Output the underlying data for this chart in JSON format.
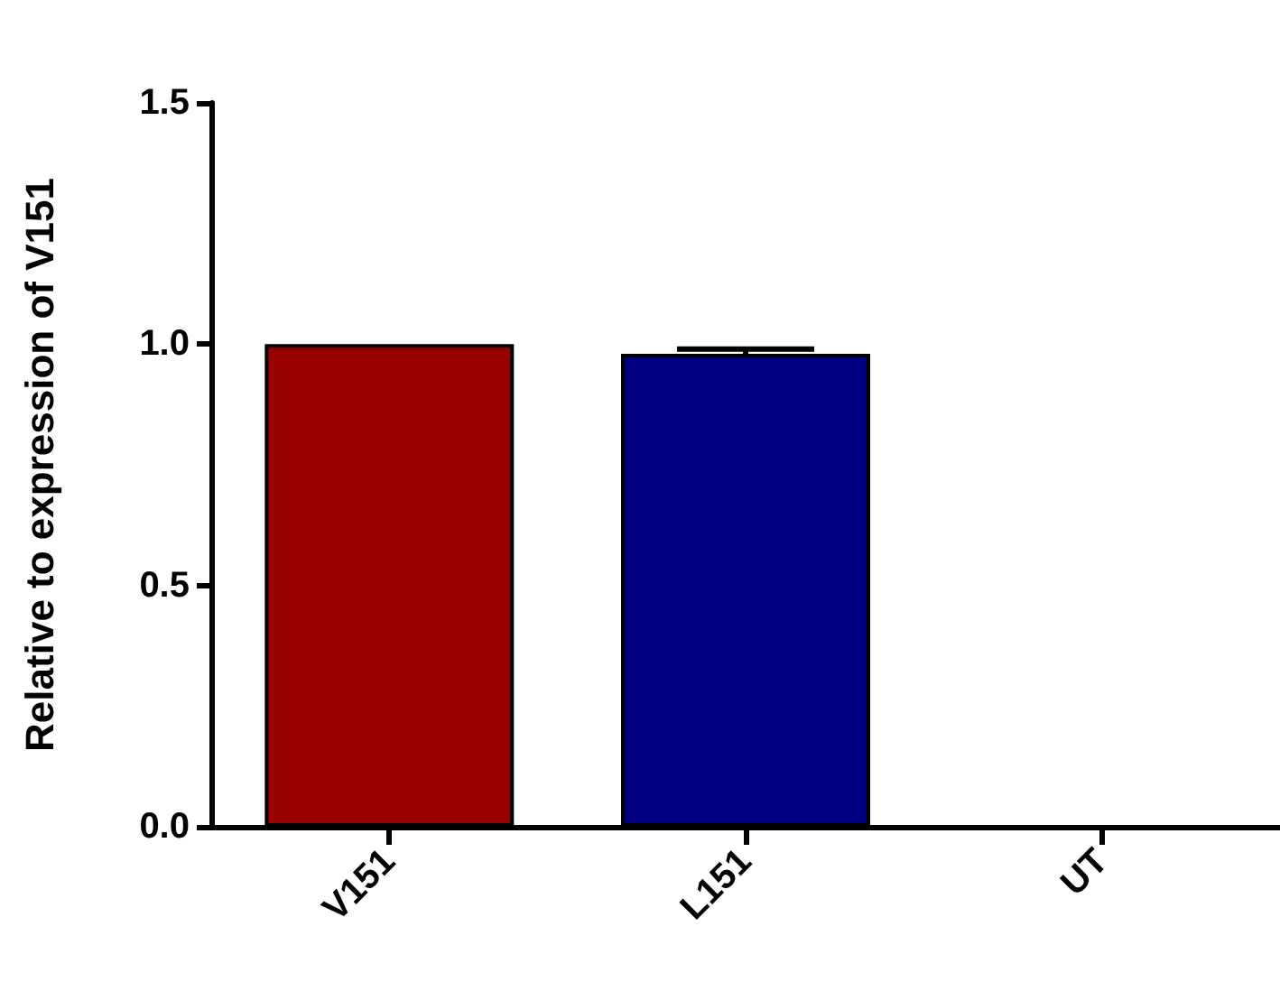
{
  "chart_data": {
    "type": "bar",
    "ylabel": "Relative to expression of V151",
    "categories": [
      "V151",
      "L151",
      "UT"
    ],
    "values": [
      1.0,
      0.98,
      null
    ],
    "colors": [
      "#990000",
      "#000080",
      "#000000"
    ],
    "errors": [
      null,
      [
        0.98,
        0.99
      ],
      null
    ],
    "ylim": [
      0,
      1.5
    ],
    "yticks": [
      {
        "value": 0,
        "label": "0.0"
      },
      0.5,
      {
        "value": 1,
        "label": "1.0"
      },
      1.5
    ],
    "grid": false
  }
}
